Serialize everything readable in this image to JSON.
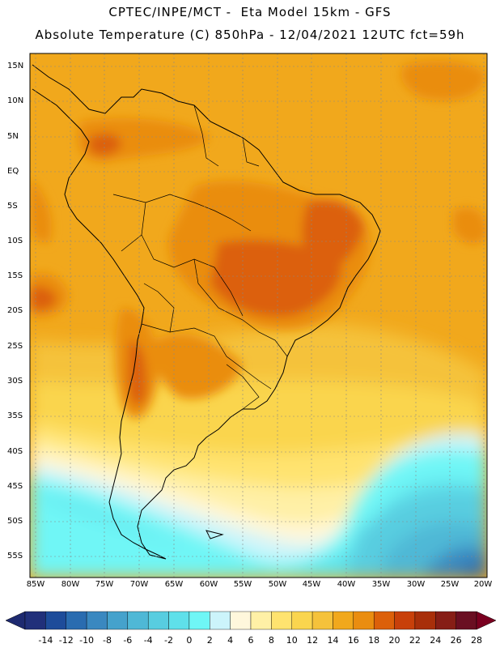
{
  "title": {
    "line1": "CPTEC/INPE/MCT -  Eta Model 15km - GFS",
    "line2": "Absolute Temperature (C) 850hPa - 12/04/2021 12UTC fct=59h"
  },
  "lat_labels": [
    "15N",
    "10N",
    "5N",
    "EQ",
    "5S",
    "10S",
    "15S",
    "20S",
    "25S",
    "30S",
    "35S",
    "40S",
    "45S",
    "50S",
    "55S"
  ],
  "lon_labels": [
    "85W",
    "80W",
    "75W",
    "70W",
    "65W",
    "60W",
    "55W",
    "50W",
    "45W",
    "40W",
    "35W",
    "30W",
    "25W",
    "20W"
  ],
  "colorbar": {
    "labels": [
      "-14",
      "-12",
      "-10",
      "-8",
      "-6",
      "-4",
      "-2",
      "0",
      "2",
      "4",
      "6",
      "8",
      "10",
      "12",
      "14",
      "16",
      "18",
      "20",
      "22",
      "24",
      "26",
      "28"
    ],
    "colors": [
      "#21307a",
      "#1e4c9a",
      "#2a6cb0",
      "#3a88c0",
      "#45a2cc",
      "#4fb8d6",
      "#58cde0",
      "#5fe0ea",
      "#6ff6f6",
      "#ccf4fb",
      "#fff7dc",
      "#fff0a6",
      "#ffe36f",
      "#fad54e",
      "#f5c23b",
      "#f1a81c",
      "#ea8d10",
      "#dc600a",
      "#c8400a",
      "#a82f0a",
      "#861e16",
      "#6a0f22"
    ],
    "low_arrow_color": "#1e2a70",
    "high_arrow_color": "#7a0020"
  }
}
